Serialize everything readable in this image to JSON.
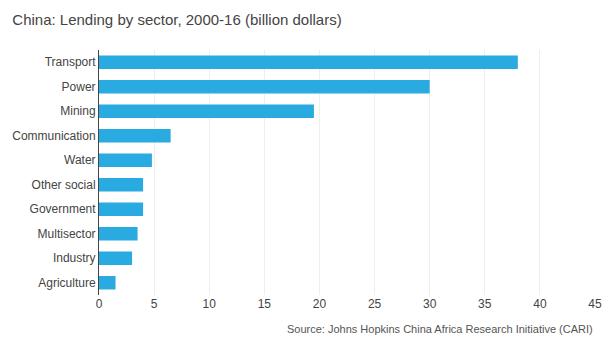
{
  "chart_data": {
    "type": "bar",
    "orientation": "horizontal",
    "title": "China: Lending by sector, 2000-16 (billion dollars)",
    "annotations": [
      "Source: Johns Hopkins China Africa Research Initiative (CARI)"
    ],
    "categories": [
      "Agriculture",
      "Industry",
      "Multisector",
      "Government",
      "Other social",
      "Water",
      "Communication",
      "Mining",
      "Power",
      "Transport"
    ],
    "values": [
      1.5,
      3.0,
      3.5,
      4.0,
      4.0,
      4.8,
      6.5,
      19.5,
      30.0,
      38.0
    ],
    "color": "#29ABE2",
    "xlim": [
      0,
      45
    ],
    "xticks": [
      0,
      5,
      10,
      15,
      20,
      25,
      30,
      35,
      40,
      45
    ],
    "grid": true
  }
}
